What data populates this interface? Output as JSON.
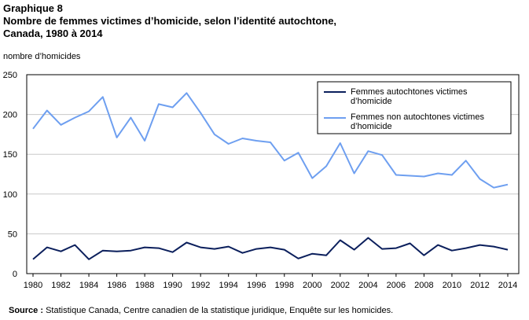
{
  "header": {
    "label": "Graphique  8",
    "title_line1": "Nombre  de femmes victimes d’homicide, selon l’identité  autochtone,",
    "title_line2": "Canada, 1980 à 2014"
  },
  "source": {
    "label": "Source :",
    "text": " Statistique Canada, Centre canadien de la statistique juridique, Enquête sur les homicides."
  },
  "chart_data": {
    "type": "line",
    "title": "Nombre  de femmes victimes d’homicide, selon l’identité  autochtone, Canada, 1980 à 2014",
    "xlabel": "",
    "ylabel": "nombre d’homicides",
    "ylim": [
      0,
      250
    ],
    "yticks": [
      0,
      50,
      100,
      150,
      200,
      250
    ],
    "grid": true,
    "legend_position": "top-right",
    "x": [
      1980,
      1981,
      1982,
      1983,
      1984,
      1985,
      1986,
      1987,
      1988,
      1989,
      1990,
      1991,
      1992,
      1993,
      1994,
      1995,
      1996,
      1997,
      1998,
      1999,
      2000,
      2001,
      2002,
      2003,
      2004,
      2005,
      2006,
      2007,
      2008,
      2009,
      2010,
      2011,
      2012,
      2013,
      2014
    ],
    "xticks": [
      1980,
      1982,
      1984,
      1986,
      1988,
      1990,
      1992,
      1994,
      1996,
      1998,
      2000,
      2002,
      2004,
      2006,
      2008,
      2010,
      2012,
      2014
    ],
    "series": [
      {
        "name_line1": "Femmes autochtones victimes",
        "name_line2": "d’homicide",
        "color": "#0b1f5c",
        "values": [
          18,
          33,
          28,
          36,
          18,
          29,
          28,
          29,
          33,
          32,
          27,
          39,
          33,
          31,
          34,
          26,
          31,
          33,
          30,
          19,
          25,
          23,
          42,
          30,
          45,
          31,
          32,
          38,
          23,
          36,
          29,
          32,
          36,
          34,
          30
        ]
      },
      {
        "name_line1": "Femmes non autochtones victimes",
        "name_line2": "d’homicide",
        "color": "#6e9ff0",
        "values": [
          182,
          205,
          187,
          196,
          204,
          222,
          171,
          196,
          167,
          213,
          209,
          227,
          202,
          175,
          163,
          170,
          167,
          165,
          142,
          152,
          120,
          135,
          164,
          126,
          154,
          149,
          124,
          123,
          122,
          126,
          124,
          142,
          119,
          108,
          112
        ]
      }
    ]
  }
}
